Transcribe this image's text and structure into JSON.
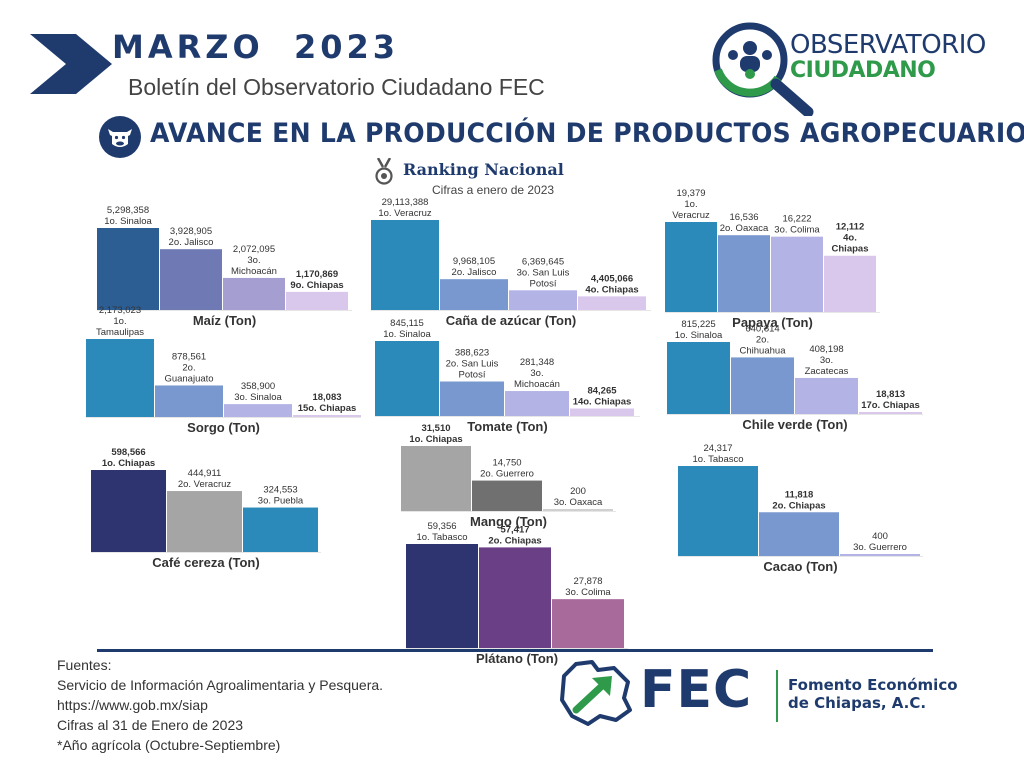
{
  "header": {
    "title": "MARZO  2023",
    "subtitle": "Boletín del Observatorio Ciudadano FEC"
  },
  "logo_observatorio": {
    "line1": "OBSERVATORIO",
    "line2": "CIUDADANO"
  },
  "section": {
    "title": "AVANCE EN LA PRODUCCIÓN DE PRODUCTOS AGROPECUARIOS",
    "icon": "cow-icon"
  },
  "ranking": {
    "label": "Ranking Nacional",
    "icon": "medal-icon",
    "note": "Cifras a enero de 2023"
  },
  "fuentes": {
    "lines": [
      "Fuentes:",
      "Servicio de Información Agroalimentaria y Pesquera.",
      "https://www.gob.mx/siap",
      "Cifras al 31 de Enero de 2023",
      "*Año agrícola (Octubre-Septiembre)"
    ]
  },
  "fec": {
    "short": "FEC",
    "name_line1": "Fomento Económico",
    "name_line2": "de Chiapas, A.C."
  },
  "colors": {
    "navy": "#1f3b6e",
    "green": "#2e9a4a",
    "chiapas_light": "#d9c7ec"
  },
  "chart_data": [
    {
      "id": "maiz",
      "type": "bar",
      "title": "Maíz (Ton)",
      "values": [
        5298358,
        3928905,
        2072095,
        1170869
      ],
      "value_labels": [
        "5,298,358",
        "3,928,905",
        "2,072,095",
        "1,170,869"
      ],
      "ranks": [
        "1o. Sinaloa",
        "2o. Jalisco",
        "3o. Michoacán",
        "9o. Chiapas"
      ],
      "highlight": [
        false,
        false,
        false,
        true
      ],
      "colors": [
        "#2c5d93",
        "#6f79b3",
        "#a49fd0",
        "#d9c7ec"
      ]
    },
    {
      "id": "cana",
      "type": "bar",
      "title": "Caña de azúcar  (Ton)",
      "values": [
        29113388,
        9968105,
        6369645,
        4405066
      ],
      "value_labels": [
        "29,113,388",
        "9,968,105",
        "6,369,645",
        "4,405,066"
      ],
      "ranks": [
        "1o. Veracruz",
        "2o. Jalisco",
        "3o. San Luis Potosí",
        "4o. Chiapas"
      ],
      "highlight": [
        false,
        false,
        false,
        true
      ],
      "colors": [
        "#2b8ab9",
        "#7898cf",
        "#b3b3e6",
        "#d9c7ec"
      ]
    },
    {
      "id": "papaya",
      "type": "bar",
      "title": "Papaya (Ton)",
      "values": [
        19379,
        16536,
        16222,
        12112
      ],
      "value_labels": [
        "19,379",
        "16,536",
        "16,222",
        "12,112"
      ],
      "ranks": [
        "1o. Veracruz",
        "2o. Oaxaca",
        "3o. Colima",
        "4o. Chiapas"
      ],
      "highlight": [
        false,
        false,
        false,
        true
      ],
      "colors": [
        "#2b8ab9",
        "#7898cf",
        "#b3b3e6",
        "#d9c7ec"
      ]
    },
    {
      "id": "sorgo",
      "type": "bar",
      "title": "Sorgo  (Ton)",
      "values": [
        2173023,
        878561,
        358900,
        18083
      ],
      "value_labels": [
        "2,173,023",
        "878,561",
        "358,900",
        "18,083"
      ],
      "ranks": [
        "1o. Tamaulipas",
        "2o. Guanajuato",
        "3o. Sinaloa",
        "15o. Chiapas"
      ],
      "highlight": [
        false,
        false,
        false,
        true
      ],
      "colors": [
        "#2b8ab9",
        "#7898cf",
        "#b3b3e6",
        "#d9c7ec"
      ]
    },
    {
      "id": "tomate",
      "type": "bar",
      "title": "Tomate  (Ton)",
      "values": [
        845115,
        388623,
        281348,
        84265
      ],
      "value_labels": [
        "845,115",
        "388,623",
        "281,348",
        "84,265"
      ],
      "ranks": [
        "1o. Sinaloa",
        "2o. San Luis Potosí",
        "3o. Michoacán",
        "14o. Chiapas"
      ],
      "highlight": [
        false,
        false,
        false,
        true
      ],
      "colors": [
        "#2b8ab9",
        "#7898cf",
        "#b3b3e6",
        "#d9c7ec"
      ]
    },
    {
      "id": "chile",
      "type": "bar",
      "title": "Chile verde (Ton)",
      "values": [
        815225,
        640814,
        408198,
        18813
      ],
      "value_labels": [
        "815,225",
        "640,814",
        "408,198",
        "18,813"
      ],
      "ranks": [
        "1o. Sinaloa",
        "2o. Chihuahua",
        "3o. Zacatecas",
        "17o. Chiapas"
      ],
      "highlight": [
        false,
        false,
        false,
        true
      ],
      "colors": [
        "#2b8ab9",
        "#7898cf",
        "#b3b3e6",
        "#d9c7ec"
      ]
    },
    {
      "id": "cafe",
      "type": "bar",
      "title": "Café cereza (Ton)",
      "values": [
        598566,
        444911,
        324553
      ],
      "value_labels": [
        "598,566",
        "444,911",
        "324,553"
      ],
      "ranks": [
        "1o. Chiapas",
        "2o. Veracruz",
        "3o. Puebla"
      ],
      "highlight": [
        true,
        false,
        false
      ],
      "colors": [
        "#2e3470",
        "#a5a5a5",
        "#2b8ab9"
      ]
    },
    {
      "id": "mango",
      "type": "bar",
      "title": "Mango (Ton)",
      "values": [
        31510,
        14750,
        200
      ],
      "value_labels": [
        "31,510",
        "14,750",
        "200"
      ],
      "ranks": [
        "1o. Chiapas",
        "2o. Guerrero",
        "3o. Oaxaca"
      ],
      "highlight": [
        true,
        false,
        false
      ],
      "colors": [
        "#a5a5a5",
        "#707070",
        "#d0d0d0"
      ]
    },
    {
      "id": "cacao",
      "type": "bar",
      "title": "Cacao (Ton)",
      "values": [
        24317,
        11818,
        400
      ],
      "value_labels": [
        "24,317",
        "11,818",
        "400"
      ],
      "ranks": [
        "1o. Tabasco",
        "2o. Chiapas",
        "3o. Guerrero"
      ],
      "highlight": [
        false,
        true,
        false
      ],
      "colors": [
        "#2b8ab9",
        "#7898cf",
        "#b3b3e6"
      ]
    },
    {
      "id": "platano",
      "type": "bar",
      "title": "Plátano (Ton)",
      "values": [
        59356,
        57417,
        27878
      ],
      "value_labels": [
        "59,356",
        "57,417",
        "27,878"
      ],
      "ranks": [
        "1o.  Tabasco",
        "2o. Chiapas",
        "3o. Colima"
      ],
      "highlight": [
        false,
        true,
        false
      ],
      "colors": [
        "#2e3470",
        "#6a3f86",
        "#a86a9b"
      ]
    }
  ]
}
